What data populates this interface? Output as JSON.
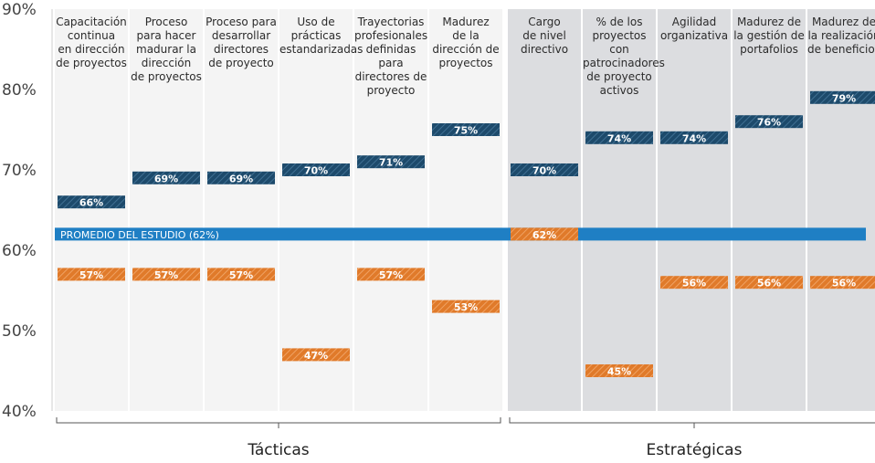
{
  "chart_data": {
    "type": "dot-range",
    "title": "",
    "xlabel": "",
    "ylabel": "",
    "ylim": [
      40,
      90
    ],
    "y_ticks": [
      "40%",
      "50%",
      "60%",
      "70%",
      "80%",
      "90%"
    ],
    "categories": [
      "Capacitación\ncontinua\nen dirección\nde proyectos",
      "Proceso\npara hacer\nmadurar la\ndirección\nde proyectos",
      "Proceso para\ndesarrollar\ndirectores\nde proyecto",
      "Uso de\nprácticas\nestandarizadas",
      "Trayectorias\nprofesionales\ndefinidas\npara\ndirectores de\nproyecto",
      "Madurez\nde la\ndirección de\nproyectos",
      "Cargo\nde nivel\ndirectivo",
      "% de los\nproyectos con\npatrocinadores\nde proyecto\nactivos",
      "Agilidad\norganizativa",
      "Madurez de\nla gestión de\nportafolios",
      "Madurez de\nla realización\nde beneficios"
    ],
    "series": [
      {
        "color": "#1d4a6b",
        "values": [
          66,
          69,
          69,
          70,
          71,
          75,
          70,
          74,
          74,
          76,
          79
        ],
        "labels": [
          "66%",
          "69%",
          "69%",
          "70%",
          "71%",
          "75%",
          "70%",
          "74%",
          "74%",
          "76%",
          "79%"
        ]
      },
      {
        "color": "#e07a2a",
        "values": [
          57,
          57,
          57,
          47,
          57,
          53,
          62,
          45,
          56,
          56,
          56
        ],
        "labels": [
          "57%",
          "57%",
          "57%",
          "47%",
          "57%",
          "53%",
          "62%",
          "45%",
          "56%",
          "56%",
          "56%"
        ]
      }
    ],
    "average": {
      "value": 62,
      "label": "PROMEDIO DEL ESTUDIO (62%)",
      "color": "#1f7fc4"
    },
    "groups": [
      {
        "label": "Tácticas",
        "from": 0,
        "to": 5
      },
      {
        "label": "Estratégicas",
        "from": 6,
        "to": 10
      }
    ],
    "shading": {
      "tactical": "#f4f4f4",
      "strategic": "#dcdde0"
    },
    "grid": false,
    "legend": "none"
  }
}
